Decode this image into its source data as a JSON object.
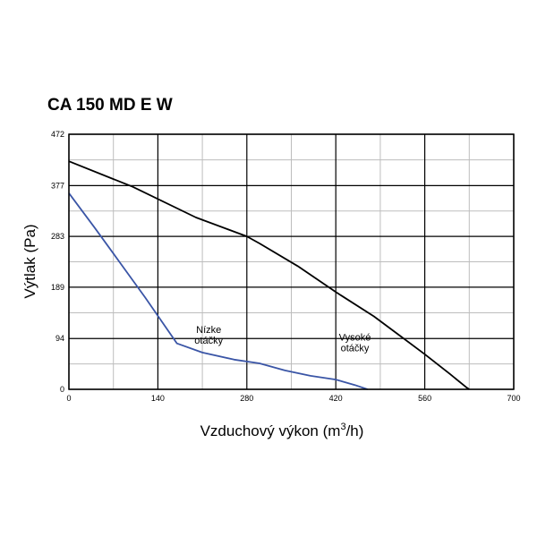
{
  "chart_data": {
    "type": "line",
    "title": "CA 150 MD E W",
    "xlabel_main": "Vzduchový výkon (m",
    "xlabel_sup": "3",
    "xlabel_end": "/h)",
    "ylabel": "Výtlak (Pa)",
    "xlim": [
      0,
      700
    ],
    "ylim": [
      0,
      472
    ],
    "x_ticks": [
      0,
      140,
      280,
      420,
      560,
      700
    ],
    "y_ticks": [
      0,
      94,
      189,
      283,
      377,
      472
    ],
    "x_tick_labels": [
      "0",
      "140",
      "280",
      "420",
      "560",
      "700"
    ],
    "y_tick_labels": [
      "0",
      "94",
      "189",
      "283",
      "377",
      "472"
    ],
    "grid": true,
    "series": [
      {
        "color": "#000000",
        "points": [
          [
            0,
            422
          ],
          [
            100,
            375
          ],
          [
            200,
            318
          ],
          [
            280,
            283
          ],
          [
            300,
            270
          ],
          [
            360,
            228
          ],
          [
            420,
            180
          ],
          [
            480,
            135
          ],
          [
            520,
            100
          ],
          [
            560,
            65
          ],
          [
            600,
            28
          ],
          [
            625,
            4
          ],
          [
            630,
            0
          ]
        ]
      },
      {
        "color": "#3a55a6",
        "points": [
          [
            0,
            363
          ],
          [
            40,
            300
          ],
          [
            80,
            235
          ],
          [
            120,
            170
          ],
          [
            170,
            85
          ],
          [
            210,
            68
          ],
          [
            260,
            55
          ],
          [
            300,
            48
          ],
          [
            340,
            35
          ],
          [
            380,
            25
          ],
          [
            420,
            18
          ],
          [
            450,
            8
          ],
          [
            470,
            0
          ]
        ]
      }
    ],
    "annotations": [
      {
        "lines": [
          "Nízke",
          "otáčky"
        ],
        "x": 220,
        "y": 104
      },
      {
        "lines": [
          "Vysoké",
          "otáčky"
        ],
        "x": 450,
        "y": 90
      }
    ]
  }
}
